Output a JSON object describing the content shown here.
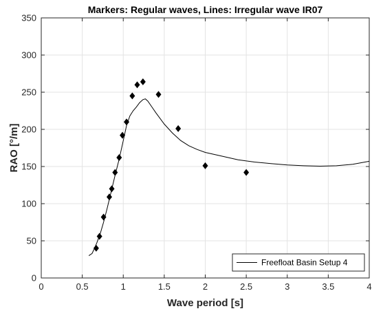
{
  "chart_data": {
    "type": "line",
    "title": "Markers: Regular waves, Lines: Irregular wave IR07",
    "xlabel": "Wave period [s]",
    "ylabel": "RAO [°/m]",
    "xlim": [
      0,
      4
    ],
    "ylim": [
      0,
      350
    ],
    "xticks": [
      0,
      0.5,
      1,
      1.5,
      2,
      2.5,
      3,
      3.5,
      4
    ],
    "xtick_labels": [
      "0",
      "0.5",
      "1",
      "1.5",
      "2",
      "2.5",
      "3",
      "3.5",
      "4"
    ],
    "yticks": [
      0,
      50,
      100,
      150,
      200,
      250,
      300,
      350
    ],
    "ytick_labels": [
      "0",
      "50",
      "100",
      "150",
      "200",
      "250",
      "300",
      "350"
    ],
    "grid": true,
    "legend": {
      "placement": "bottom-right",
      "entries": [
        "Freefloat Basin Setup 4"
      ]
    },
    "series": [
      {
        "name": "Freefloat Basin Setup 4",
        "kind": "line",
        "color": "#000000",
        "x": [
          0.58,
          0.62,
          0.65,
          0.68,
          0.72,
          0.76,
          0.8,
          0.85,
          0.9,
          0.95,
          1.0,
          1.04,
          1.08,
          1.12,
          1.16,
          1.2,
          1.24,
          1.27,
          1.3,
          1.35,
          1.4,
          1.5,
          1.6,
          1.7,
          1.8,
          1.9,
          2.0,
          2.2,
          2.4,
          2.6,
          2.8,
          3.0,
          3.2,
          3.4,
          3.6,
          3.8,
          4.0
        ],
        "y": [
          30,
          33,
          40,
          48,
          60,
          75,
          92,
          115,
          138,
          160,
          185,
          205,
          218,
          225,
          230,
          236,
          240,
          241,
          238,
          230,
          222,
          207,
          195,
          185,
          178,
          173,
          169,
          164,
          159,
          156,
          154,
          152,
          151,
          150.5,
          151,
          153,
          157
        ]
      },
      {
        "name": "",
        "kind": "marker",
        "marker": "diamond",
        "color": "#000000",
        "x": [
          0.67,
          0.71,
          0.76,
          0.83,
          0.86,
          0.9,
          0.95,
          0.99,
          1.04,
          1.11,
          1.17,
          1.24,
          1.43,
          1.67,
          2.0,
          2.5
        ],
        "y": [
          40,
          56,
          82,
          109,
          120,
          142,
          162,
          192,
          210,
          245,
          260,
          264,
          247,
          201,
          151,
          142
        ]
      }
    ]
  }
}
